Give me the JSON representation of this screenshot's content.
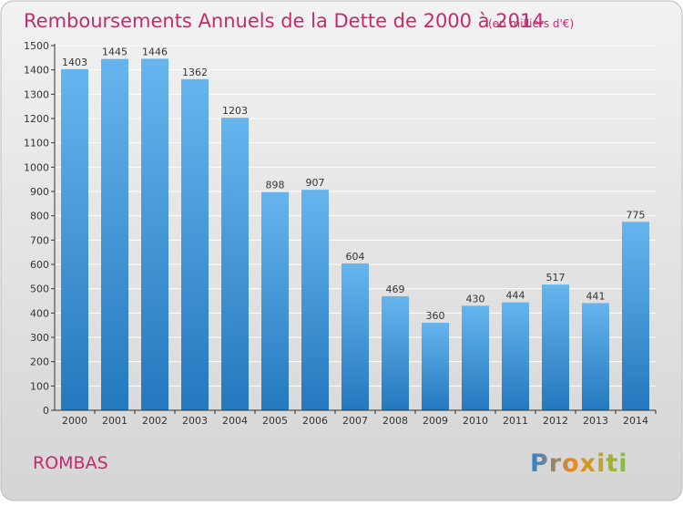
{
  "chart_data": {
    "type": "bar",
    "title": "Remboursements Annuels de la Dette de 2000 à 2014",
    "subtitle": "(en milliers d'€)",
    "categories": [
      "2000",
      "2001",
      "2002",
      "2003",
      "2004",
      "2005",
      "2006",
      "2007",
      "2008",
      "2009",
      "2010",
      "2011",
      "2012",
      "2013",
      "2014"
    ],
    "values": [
      1403,
      1445,
      1446,
      1362,
      1203,
      898,
      907,
      604,
      469,
      360,
      430,
      444,
      517,
      441,
      775
    ],
    "xlabel": "",
    "ylabel": "",
    "ylim": [
      0,
      1500
    ],
    "yticks": [
      0,
      100,
      200,
      300,
      400,
      500,
      600,
      700,
      800,
      900,
      1000,
      1100,
      1200,
      1300,
      1400,
      1500
    ],
    "grid": true,
    "legend": "none"
  },
  "footer": {
    "place_name": "ROMBAS",
    "logo_text": "Proxiti"
  },
  "colors": {
    "bar_light": "#66B5EE",
    "bar_dark": "#2478BE",
    "title": "#C62A6E",
    "place_name": "#C62A6E",
    "grid": "#FFFFFF",
    "background_top": "#F2F2F2",
    "background_bottom": "#D5D5D5",
    "axis_text": "#333333",
    "value_text": "#333333"
  }
}
